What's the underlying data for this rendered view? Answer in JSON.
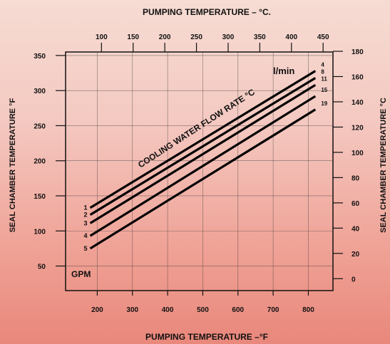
{
  "chart_data": {
    "type": "line",
    "title_top": "PUMPING TEMPERATURE – °C.",
    "title_bottom": "PUMPING TEMPERATURE –°F",
    "ylabel_left": "SEAL CHAMBER TEMPERATURE °F",
    "ylabel_right": "SEAL CHAMBER TEMPERATURE °C",
    "annotation": "COOLING WATER FLOW RATE °C",
    "unit_metric": "l/min",
    "unit_us": "GPM",
    "x_bottom": {
      "ticks": [
        200,
        300,
        400,
        500,
        600,
        700,
        800
      ],
      "range": [
        110,
        870
      ]
    },
    "x_top": {
      "ticks": [
        100,
        150,
        200,
        250,
        300,
        350,
        400,
        450
      ]
    },
    "y_left": {
      "ticks": [
        50,
        100,
        150,
        200,
        250,
        300,
        350
      ],
      "range": [
        15,
        355
      ]
    },
    "y_right": {
      "ticks": [
        0,
        20,
        40,
        60,
        80,
        100,
        120,
        140,
        160,
        180
      ]
    },
    "grid": true,
    "series": [
      {
        "gpm": "1",
        "lpm": "4",
        "x": [
          180,
          820
        ],
        "y": [
          133,
          328
        ]
      },
      {
        "gpm": "2",
        "lpm": "8",
        "x": [
          180,
          820
        ],
        "y": [
          123,
          318
        ]
      },
      {
        "gpm": "3",
        "lpm": "11",
        "x": [
          180,
          820
        ],
        "y": [
          111,
          308
        ]
      },
      {
        "gpm": "4",
        "lpm": "15",
        "x": [
          180,
          820
        ],
        "y": [
          93,
          292
        ]
      },
      {
        "gpm": "5",
        "lpm": "19",
        "x": [
          180,
          820
        ],
        "y": [
          75,
          273
        ]
      }
    ]
  }
}
